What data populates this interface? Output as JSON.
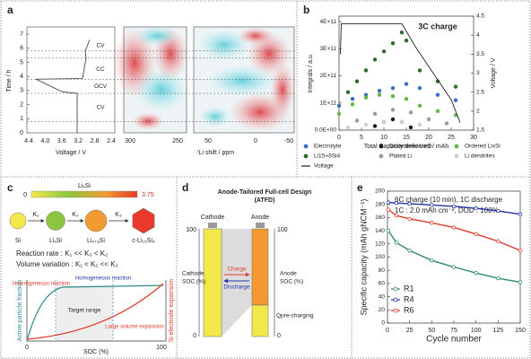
{
  "panel_labels": [
    "a",
    "b",
    "c",
    "d",
    "e"
  ],
  "panel_a": {
    "y_label": "Time / h",
    "y_ticks": [
      "0",
      "1",
      "2",
      "3",
      "4",
      "5",
      "6",
      "7"
    ],
    "voltage_label": "Voltage / V",
    "voltage_ticks": [
      "4.4",
      "4.0",
      "3.6",
      "3.2",
      "2.8",
      "2.4"
    ],
    "shift_label": "⁷Li shift / ppm",
    "shift_ticks": [
      "300",
      "250",
      "50",
      "0",
      "-50"
    ],
    "steps": [
      "CV",
      "CC",
      "OCV",
      "CV"
    ]
  },
  "chart_data": [
    {
      "type": "scatter",
      "title": "3C charge",
      "x_label": "Total Capacity delivered / mAh",
      "y_label": "Integrals / a.u.",
      "y2_label": "Voltage / V",
      "xlim": [
        0,
        30
      ],
      "xticks": [
        0,
        5,
        10,
        15,
        20,
        25,
        30
      ],
      "ylim": [
        0,
        420000000000
      ],
      "yticks": [
        {
          "value": 0,
          "label": "0.0E+00"
        },
        {
          "value": 100000000000,
          "label": "1E+11"
        },
        {
          "value": 200000000000,
          "label": "2E+11"
        },
        {
          "value": 300000000000,
          "label": "3E+11"
        },
        {
          "value": 400000000000,
          "label": "4E+11"
        }
      ],
      "y2lim": [
        1.5,
        4.5
      ],
      "y2ticks": [
        1.5,
        2,
        2.5,
        3,
        3.5,
        4,
        4.5
      ],
      "series": [
        {
          "name": "Electrolyte",
          "color": "#3a6fc8",
          "x": [
            0,
            3,
            6,
            9,
            12,
            15,
            18,
            22,
            26
          ],
          "values": [
            90000000000,
            115000000000,
            130000000000,
            145000000000,
            155000000000,
            170000000000,
            155000000000,
            130000000000,
            110000000000
          ]
        },
        {
          "name": "Disordered LixSi",
          "color": "#1a1a1a",
          "x": [
            8,
            10,
            12,
            14,
            16
          ],
          "values": [
            15000000000,
            30000000000,
            40000000000,
            30000000000,
            10000000000
          ]
        },
        {
          "name": "Ordered LixSi",
          "color": "#62b845",
          "x": [
            0,
            3,
            6,
            9,
            12,
            15,
            18,
            22,
            26
          ],
          "values": [
            60000000000,
            95000000000,
            120000000000,
            130000000000,
            125000000000,
            115000000000,
            90000000000,
            70000000000,
            55000000000
          ]
        },
        {
          "name": "Li15+δSi4",
          "color": "#2e6b2a",
          "x": [
            2,
            4,
            6,
            8,
            10,
            12,
            14,
            15,
            18,
            22,
            26
          ],
          "values": [
            140000000000,
            180000000000,
            220000000000,
            260000000000,
            290000000000,
            320000000000,
            360000000000,
            330000000000,
            220000000000,
            180000000000,
            160000000000
          ]
        },
        {
          "name": "Plated Li",
          "color": "#9a9a9a",
          "x": [
            4,
            8,
            12,
            16,
            20,
            24
          ],
          "values": [
            35000000000,
            60000000000,
            75000000000,
            65000000000,
            40000000000,
            25000000000
          ]
        },
        {
          "name": "Li dendrites",
          "color": "#cfcfcf",
          "x": [
            2,
            6,
            10,
            14,
            18
          ],
          "values": [
            10000000000,
            20000000000,
            30000000000,
            30000000000,
            20000000000
          ]
        },
        {
          "name": "Voltage",
          "color": "#222222",
          "mode": "line",
          "axis": "y2",
          "x": [
            0.3,
            0.5,
            14,
            17,
            21,
            25,
            27
          ],
          "values": [
            3.5,
            4.3,
            4.3,
            3.7,
            3,
            2.3,
            1.7
          ]
        }
      ]
    },
    {
      "type": "line",
      "x_label": "Cycle number",
      "y_label": "Specific capacity (mAh gNCM⁻¹)",
      "annotations": [
        "6C charge (10 min), 1C discharge",
        "1C : 2.0 mAh cm⁻², DOD : 100%"
      ],
      "xlim": [
        0,
        150
      ],
      "xticks": [
        0,
        25,
        50,
        75,
        100,
        125,
        150
      ],
      "ylim": [
        0,
        200
      ],
      "yticks": [
        0,
        20,
        40,
        60,
        80,
        100,
        120,
        140,
        160,
        180,
        200
      ],
      "x": [
        1,
        10,
        25,
        50,
        75,
        100,
        125,
        150
      ],
      "series": [
        {
          "name": "R1",
          "color": "#2e8b6a",
          "values": [
            140,
            122,
            110,
            95,
            85,
            76,
            68,
            62
          ]
        },
        {
          "name": "R4",
          "color": "#2233aa",
          "values": [
            183,
            182,
            181,
            179,
            177,
            174,
            170,
            165
          ]
        },
        {
          "name": "R6",
          "color": "#e03a2a",
          "values": [
            172,
            163,
            158,
            152,
            145,
            135,
            124,
            110
          ]
        }
      ]
    }
  ],
  "panel_c": {
    "colorbar_label": "LiₓSi",
    "colorbar_min": "0",
    "colorbar_max": "3.75",
    "phases": [
      "Si",
      "LiₓSi",
      "Liₓ₊ᵧSi",
      "c-Li₁₅Si₄"
    ],
    "rates": [
      "K₁",
      "K₂",
      "K₃"
    ],
    "reaction_rate": "Reaction rate : K₁ << K₃ < K₂",
    "volume_variation": "Volume variation : K₁ < K₂ << K₃",
    "heterogeneous": "Heterogeneous reaction",
    "homogeneous": "Homogeneous reaction",
    "target": "Target range",
    "large_volume": "Large volume expansion",
    "y_left": "Active particle fraction",
    "y_right": "Si electrode expansion",
    "x_label": "SOC (%)",
    "x_min": "0",
    "x_max": "100"
  },
  "panel_d": {
    "title": [
      "Anode-Tailored Full-cell Design",
      "(ATFD)"
    ],
    "cathode": "Cathode",
    "anode": "Anode",
    "cathode_soc": [
      "Cathode",
      "SOC (%)"
    ],
    "anode_soc": [
      "Anode",
      "SOC (%)"
    ],
    "left_max": "100",
    "left_min": "0",
    "right_max": "100",
    "right_min": "0",
    "charge": "Charge",
    "discharge": "Discharge",
    "q_pre": "Qpre-charging"
  }
}
